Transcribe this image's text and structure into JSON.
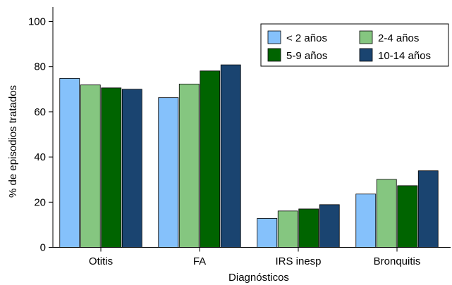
{
  "chart_data": {
    "type": "bar",
    "xlabel": "Diagnósticos",
    "ylabel": "% de episodios tratados",
    "ylim": [
      0,
      100
    ],
    "yticks": [
      0,
      20,
      40,
      60,
      80,
      100
    ],
    "grid": false,
    "legend_position": "top-right",
    "categories": [
      "Otitis",
      "FA",
      "IRS inesp",
      "Bronquitis"
    ],
    "series": [
      {
        "name": "< 2 años",
        "color": "#85c1fb",
        "values": [
          74.8,
          66.3,
          12.8,
          23.6
        ]
      },
      {
        "name": "2-4 años",
        "color": "#85c680",
        "values": [
          71.9,
          72.3,
          16.1,
          30.1
        ]
      },
      {
        "name": "5-9 años",
        "color": "#006400",
        "values": [
          70.6,
          78.1,
          17.0,
          27.3
        ]
      },
      {
        "name": "10-14 años",
        "color": "#1a4470",
        "values": [
          70.0,
          80.8,
          18.9,
          33.9
        ]
      }
    ]
  }
}
